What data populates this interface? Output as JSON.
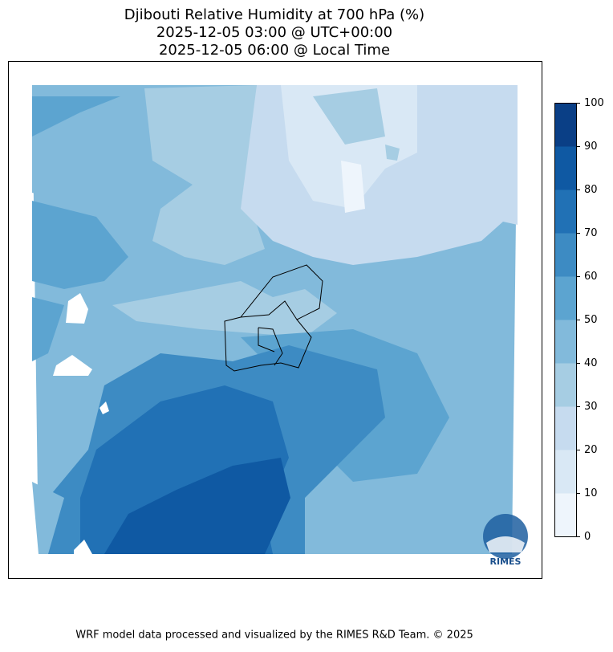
{
  "title": [
    "Djibouti Relative Humidity at 700 hPa (%)",
    "2025-12-05 03:00 @ UTC+00:00",
    "2025-12-05 06:00 @ Local Time"
  ],
  "colorbar": {
    "ticks": [
      0,
      10,
      20,
      30,
      40,
      50,
      60,
      70,
      80,
      90,
      100
    ],
    "colors": [
      "#eef5fc",
      "#d9e8f5",
      "#c6dbef",
      "#a6cde3",
      "#82badb",
      "#5ca4d0",
      "#3d8bc3",
      "#2171b5",
      "#0f59a3",
      "#0a3f86"
    ]
  },
  "logo_text": "RIMES",
  "footer": "WRF model data processed and visualized by the RIMES R&D Team. © 2025"
}
